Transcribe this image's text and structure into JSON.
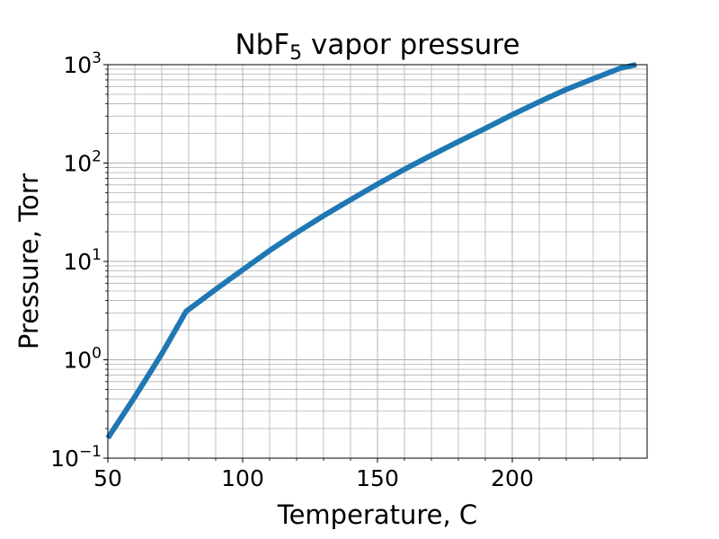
{
  "chart_data": {
    "type": "line",
    "title": "NbF",
    "title_subscript": "5",
    "title_rest": " vapor pressure",
    "xlabel": "Temperature, C",
    "ylabel": "Pressure, Torr",
    "xlim": [
      50,
      250
    ],
    "ylim": [
      0.1,
      1000
    ],
    "y_scale": "log",
    "grid": true,
    "x_ticks": [
      {
        "value": 50,
        "label": "50"
      },
      {
        "value": 100,
        "label": "100"
      },
      {
        "value": 150,
        "label": "150"
      },
      {
        "value": 200,
        "label": "200"
      }
    ],
    "y_ticks": [
      {
        "value": 0.1,
        "base": "10",
        "exp": "−1"
      },
      {
        "value": 1,
        "base": "10",
        "exp": "0"
      },
      {
        "value": 10,
        "base": "10",
        "exp": "1"
      },
      {
        "value": 100,
        "base": "10",
        "exp": "2"
      },
      {
        "value": 1000,
        "base": "10",
        "exp": "3"
      }
    ],
    "series": [
      {
        "color": "#1f77b4",
        "x": [
          50,
          60,
          70,
          79,
          90,
          100,
          110,
          120,
          130,
          140,
          150,
          160,
          170,
          180,
          190,
          200,
          210,
          220,
          230,
          240,
          246
        ],
        "y": [
          0.16,
          0.42,
          1.15,
          3.1,
          5.2,
          8.2,
          12.9,
          19.6,
          29.1,
          42.3,
          61.0,
          86.3,
          120,
          165,
          225,
          310,
          420,
          560,
          720,
          920,
          1000
        ]
      }
    ]
  }
}
